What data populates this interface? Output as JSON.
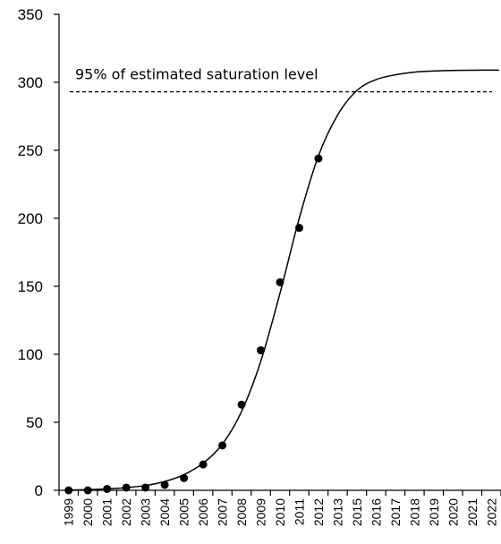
{
  "chart_data": {
    "type": "scatter",
    "title": "",
    "xlabel": "",
    "ylabel": "",
    "categories": [
      "1999",
      "2000",
      "2001",
      "2002",
      "2003",
      "2004",
      "2005",
      "2006",
      "2007",
      "2008",
      "2009",
      "2010",
      "2011",
      "2012",
      "2013",
      "2015",
      "2016",
      "2017",
      "2018",
      "2019",
      "2020",
      "2021",
      "2022"
    ],
    "ylim": [
      0,
      350
    ],
    "yticks": [
      0,
      50,
      100,
      150,
      200,
      250,
      300,
      350
    ],
    "grid": false,
    "observed": {
      "x": [
        "1999",
        "2000",
        "2001",
        "2002",
        "2003",
        "2004",
        "2005",
        "2006",
        "2007",
        "2008",
        "2009",
        "2010",
        "2011",
        "2012"
      ],
      "y": [
        0,
        0,
        1,
        2,
        2,
        4,
        9,
        19,
        33,
        63,
        103,
        153,
        193,
        244
      ]
    },
    "fitted_curve": {
      "x": [
        "1999",
        "2000",
        "2001",
        "2002",
        "2003",
        "2004",
        "2005",
        "2006",
        "2007",
        "2008",
        "2009",
        "2010",
        "2011",
        "2012",
        "2013",
        "2015",
        "2016",
        "2017",
        "2018",
        "2019",
        "2020",
        "2021",
        "2022"
      ],
      "y": [
        0.2,
        0.5,
        1.1,
        2,
        3.5,
        6.5,
        11.5,
        20,
        34,
        58,
        95,
        145,
        200,
        246,
        276,
        294,
        302,
        305.5,
        307.5,
        308.3,
        308.7,
        308.9,
        309
      ]
    },
    "reference_line": {
      "y": 293,
      "label": "95% of estimated saturation level",
      "style": "dashed"
    }
  }
}
